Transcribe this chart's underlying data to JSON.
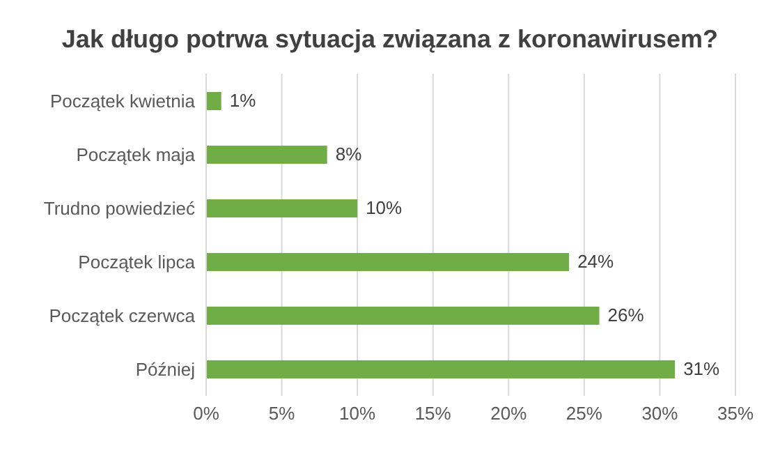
{
  "chart_data": {
    "type": "bar",
    "orientation": "horizontal",
    "title": "Jak długo potrwa sytuacja związana z koronawirusem?",
    "categories": [
      "Początek kwietnia",
      "Początek maja",
      "Trudno powiedzieć",
      "Początek lipca",
      "Początek czerwca",
      "Później"
    ],
    "values": [
      1,
      8,
      10,
      24,
      26,
      31
    ],
    "value_labels": [
      "1%",
      "8%",
      "10%",
      "24%",
      "26%",
      "31%"
    ],
    "color": "#70ad47",
    "xlim": [
      0,
      35
    ],
    "xticks": [
      {
        "value": 0,
        "label": "0%"
      },
      {
        "value": 5,
        "label": "5%"
      },
      {
        "value": 10,
        "label": "10%"
      },
      {
        "value": 15,
        "label": "15%"
      },
      {
        "value": 20,
        "label": "20%"
      },
      {
        "value": 25,
        "label": "25%"
      },
      {
        "value": 30,
        "label": "30%"
      },
      {
        "value": 35,
        "label": "35%"
      }
    ],
    "grid": "x"
  }
}
